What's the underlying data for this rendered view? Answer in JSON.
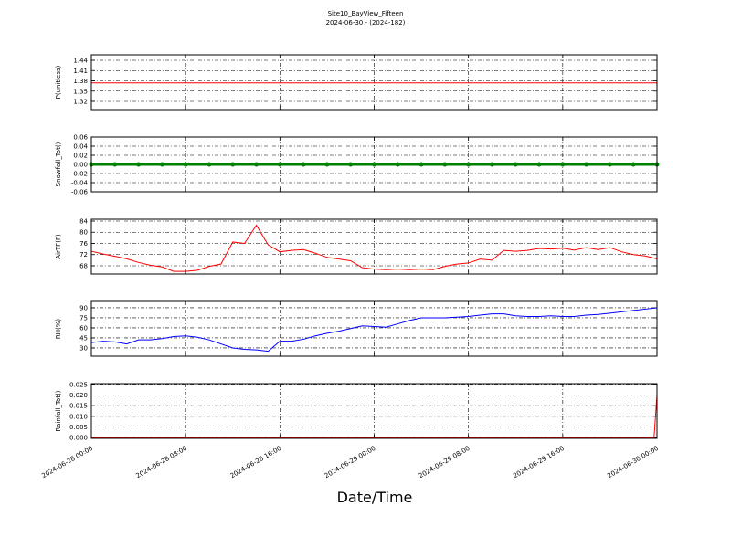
{
  "title": "Site10_BayView_Fifteen",
  "subtitle": "2024-06-30 - (2024-182)",
  "xlabel": "Date/Time",
  "chart_data": [
    {
      "type": "line",
      "ylabel": "P(unitless)",
      "ylim": [
        1.296,
        1.456
      ],
      "yticks": [
        1.32,
        1.35,
        1.38,
        1.41,
        1.44
      ],
      "grid": true,
      "xlim": [
        "2024-06-28 00:00",
        "2024-06-30 00:00"
      ],
      "x": [
        "2024-06-28 00:00",
        "2024-06-28 04:00",
        "2024-06-28 08:00",
        "2024-06-28 12:00",
        "2024-06-28 16:00",
        "2024-06-28 20:00",
        "2024-06-29 00:00",
        "2024-06-29 04:00",
        "2024-06-29 08:00",
        "2024-06-29 12:00",
        "2024-06-29 16:00",
        "2024-06-29 20:00",
        "2024-06-30 00:00"
      ],
      "series": [
        {
          "name": "P(unitless)",
          "color": "#ff0000",
          "values": [
            1.374,
            1.374,
            1.374,
            1.374,
            1.374,
            1.374,
            1.374,
            1.374,
            1.374,
            1.374,
            1.374,
            1.374,
            1.374
          ]
        }
      ]
    },
    {
      "type": "line",
      "ylabel": "Snowfall_Tot()",
      "ylim": [
        -0.06,
        0.06
      ],
      "yticks": [
        -0.06,
        -0.04,
        -0.02,
        {
          "value": 0,
          "label": "0.00"
        },
        0.02,
        0.04,
        0.06
      ],
      "grid": true,
      "markers": true,
      "xlim": [
        "2024-06-28 00:00",
        "2024-06-30 00:00"
      ],
      "x": [
        "2024-06-28 00:00",
        "2024-06-28 02:00",
        "2024-06-28 04:00",
        "2024-06-28 06:00",
        "2024-06-28 08:00",
        "2024-06-28 10:00",
        "2024-06-28 12:00",
        "2024-06-28 14:00",
        "2024-06-28 16:00",
        "2024-06-28 18:00",
        "2024-06-28 20:00",
        "2024-06-28 22:00",
        "2024-06-29 00:00",
        "2024-06-29 02:00",
        "2024-06-29 04:00",
        "2024-06-29 06:00",
        "2024-06-29 08:00",
        "2024-06-29 10:00",
        "2024-06-29 12:00",
        "2024-06-29 14:00",
        "2024-06-29 16:00",
        "2024-06-29 18:00",
        "2024-06-29 20:00",
        "2024-06-29 22:00",
        "2024-06-30 00:00"
      ],
      "series": [
        {
          "name": "Snowfall_Tot()",
          "color": "#008000",
          "values": [
            0,
            0,
            0,
            0,
            0,
            0,
            0,
            0,
            0,
            0,
            0,
            0,
            0,
            0,
            0,
            0,
            0,
            0,
            0,
            0,
            0,
            0,
            0,
            0,
            0
          ]
        }
      ]
    },
    {
      "type": "line",
      "ylabel": "AirTF(F)",
      "ylim": [
        65.06,
        84.65
      ],
      "yticks": [
        68,
        72,
        76,
        80,
        84
      ],
      "grid": true,
      "xlim": [
        "2024-06-28 00:00",
        "2024-06-30 00:00"
      ],
      "x": [
        "2024-06-28 00:00",
        "2024-06-28 01:00",
        "2024-06-28 02:00",
        "2024-06-28 03:00",
        "2024-06-28 04:00",
        "2024-06-28 05:00",
        "2024-06-28 06:00",
        "2024-06-28 07:00",
        "2024-06-28 08:00",
        "2024-06-28 09:00",
        "2024-06-28 10:00",
        "2024-06-28 11:00",
        "2024-06-28 12:00",
        "2024-06-28 13:00",
        "2024-06-28 14:00",
        "2024-06-28 15:00",
        "2024-06-28 16:00",
        "2024-06-28 17:00",
        "2024-06-28 18:00",
        "2024-06-28 19:00",
        "2024-06-28 20:00",
        "2024-06-28 21:00",
        "2024-06-28 22:00",
        "2024-06-28 23:00",
        "2024-06-29 00:00",
        "2024-06-29 01:00",
        "2024-06-29 02:00",
        "2024-06-29 03:00",
        "2024-06-29 04:00",
        "2024-06-29 05:00",
        "2024-06-29 06:00",
        "2024-06-29 07:00",
        "2024-06-29 08:00",
        "2024-06-29 09:00",
        "2024-06-29 10:00",
        "2024-06-29 11:00",
        "2024-06-29 12:00",
        "2024-06-29 13:00",
        "2024-06-29 14:00",
        "2024-06-29 15:00",
        "2024-06-29 16:00",
        "2024-06-29 17:00",
        "2024-06-29 18:00",
        "2024-06-29 19:00",
        "2024-06-29 20:00",
        "2024-06-29 21:00",
        "2024-06-29 22:00",
        "2024-06-29 23:00",
        "2024-06-30 00:00"
      ],
      "series": [
        {
          "name": "AirTF(F)",
          "color": "#ff0000",
          "values": [
            73.2,
            72.2,
            71.4,
            70.5,
            69.2,
            68.2,
            67.6,
            66.0,
            66.0,
            66.4,
            67.8,
            68.6,
            76.5,
            76.0,
            82.5,
            75.5,
            73.0,
            73.5,
            73.8,
            72.5,
            71.0,
            70.4,
            69.8,
            67.3,
            66.8,
            66.6,
            66.8,
            66.6,
            66.8,
            66.6,
            67.8,
            68.6,
            69.0,
            70.4,
            70.0,
            73.5,
            73.2,
            73.5,
            74.2,
            74.0,
            74.3,
            73.6,
            74.5,
            73.8,
            74.5,
            73.0,
            72.0,
            71.5,
            70.5
          ]
        }
      ]
    },
    {
      "type": "line",
      "ylabel": "RH(%)",
      "ylim": [
        17.7,
        99.5
      ],
      "yticks": [
        30,
        45,
        60,
        75,
        90
      ],
      "grid": true,
      "xlim": [
        "2024-06-28 00:00",
        "2024-06-30 00:00"
      ],
      "x": [
        "2024-06-28 00:00",
        "2024-06-28 01:00",
        "2024-06-28 02:00",
        "2024-06-28 03:00",
        "2024-06-28 04:00",
        "2024-06-28 05:00",
        "2024-06-28 06:00",
        "2024-06-28 07:00",
        "2024-06-28 08:00",
        "2024-06-28 09:00",
        "2024-06-28 10:00",
        "2024-06-28 11:00",
        "2024-06-28 12:00",
        "2024-06-28 13:00",
        "2024-06-28 14:00",
        "2024-06-28 15:00",
        "2024-06-28 16:00",
        "2024-06-28 17:00",
        "2024-06-28 18:00",
        "2024-06-28 19:00",
        "2024-06-28 20:00",
        "2024-06-28 21:00",
        "2024-06-28 22:00",
        "2024-06-28 23:00",
        "2024-06-29 00:00",
        "2024-06-29 01:00",
        "2024-06-29 02:00",
        "2024-06-29 03:00",
        "2024-06-29 04:00",
        "2024-06-29 05:00",
        "2024-06-29 06:00",
        "2024-06-29 07:00",
        "2024-06-29 08:00",
        "2024-06-29 09:00",
        "2024-06-29 10:00",
        "2024-06-29 11:00",
        "2024-06-29 12:00",
        "2024-06-29 13:00",
        "2024-06-29 14:00",
        "2024-06-29 15:00",
        "2024-06-29 16:00",
        "2024-06-29 17:00",
        "2024-06-29 18:00",
        "2024-06-29 19:00",
        "2024-06-29 20:00",
        "2024-06-29 21:00",
        "2024-06-29 22:00",
        "2024-06-29 23:00",
        "2024-06-30 00:00"
      ],
      "series": [
        {
          "name": "RH(%)",
          "color": "#0000ff",
          "values": [
            38,
            40,
            39,
            36,
            42,
            42,
            44,
            47,
            48,
            46,
            42,
            36,
            30,
            28,
            27,
            25,
            40,
            40,
            43,
            48,
            52,
            55,
            59,
            63,
            62,
            61,
            66,
            71,
            75,
            75,
            75,
            76,
            77,
            79,
            81,
            81,
            78,
            77,
            77,
            78,
            77,
            77,
            79,
            80,
            82,
            84,
            86,
            88,
            90
          ]
        }
      ]
    },
    {
      "type": "line",
      "ylabel": "Rainfall_Tot()",
      "ylim": [
        -0.0004,
        0.0254
      ],
      "yticks": [
        {
          "value": 0,
          "label": "0.000"
        },
        {
          "value": 0.005,
          "label": "0.005"
        },
        {
          "value": 0.01,
          "label": "0.010"
        },
        {
          "value": 0.015,
          "label": "0.015"
        },
        {
          "value": 0.02,
          "label": "0.020"
        },
        {
          "value": 0.025,
          "label": "0.025"
        }
      ],
      "grid": true,
      "xlim": [
        "2024-06-28 00:00",
        "2024-06-30 00:00"
      ],
      "xticks": [
        "2024-06-28 00:00",
        "2024-06-28 08:00",
        "2024-06-28 16:00",
        "2024-06-29 00:00",
        "2024-06-29 08:00",
        "2024-06-29 16:00",
        "2024-06-30 00:00"
      ],
      "x": [
        "2024-06-28 00:00",
        "2024-06-28 08:00",
        "2024-06-28 16:00",
        "2024-06-29 00:00",
        "2024-06-29 08:00",
        "2024-06-29 16:00",
        "2024-06-29 23:00",
        "2024-06-29 23:45",
        "2024-06-30 00:00"
      ],
      "series": [
        {
          "name": "Rainfall_Tot()",
          "color": "#ff0000",
          "values": [
            0,
            0,
            0,
            0,
            0,
            0,
            0,
            0,
            0.02
          ]
        }
      ]
    }
  ]
}
